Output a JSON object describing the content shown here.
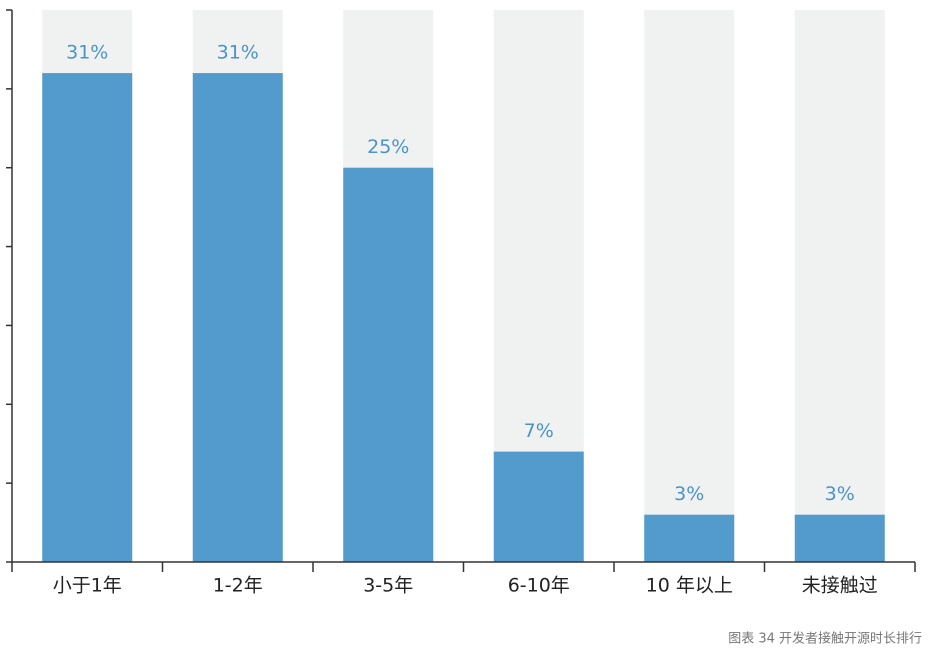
{
  "chart_data": {
    "type": "bar",
    "categories": [
      "小于1年",
      "1-2年",
      "3-5年",
      "6-10年",
      "10 年以上",
      "未接触过"
    ],
    "values": [
      31,
      31,
      25,
      7,
      3,
      3
    ],
    "value_labels": [
      "31%",
      "31%",
      "25%",
      "7%",
      "3%",
      "3%"
    ],
    "color": "#529bcc",
    "ylim": [
      0,
      35
    ],
    "yticks": [
      0,
      5,
      10,
      15,
      20,
      25,
      30,
      35
    ],
    "caption": "图表 34  开发者接触开源时长排行"
  }
}
